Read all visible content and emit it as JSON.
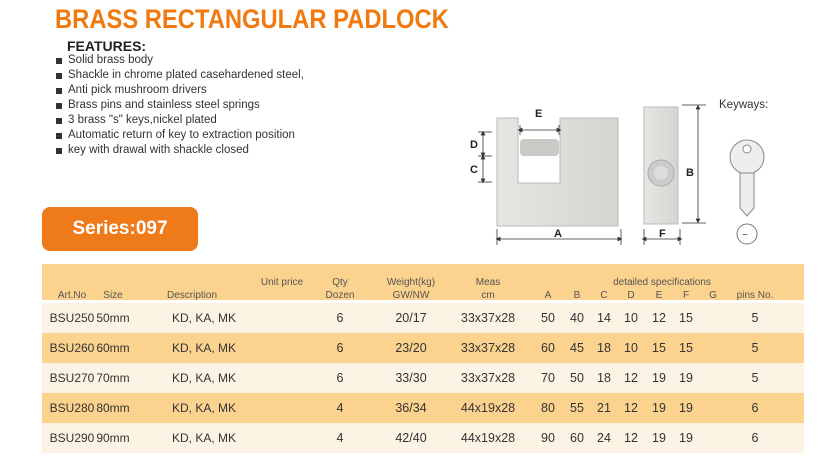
{
  "title": "BRASS RECTANGULAR PADLOCK",
  "features": {
    "heading": "FEATURES:",
    "items": [
      "Solid brass body",
      "Shackle in chrome plated casehardened steel,",
      "Anti pick mushroom drivers",
      "Brass pins and stainless steel springs",
      "3 brass \"s\" keys,nickel plated",
      "Automatic return of key to extraction position",
      "key with drawal with shackle closed"
    ]
  },
  "series": "Series:097",
  "diagram": {
    "labels": {
      "A": "A",
      "B": "B",
      "C": "C",
      "D": "D",
      "E": "E",
      "F": "F"
    },
    "keyways": "Keyways:"
  },
  "colors": {
    "accent": "#ef7a1a",
    "header_band": "#fcd38e",
    "row_light": "#fdf3e4",
    "row_dark": "#fcd38e"
  },
  "table": {
    "headers": {
      "art": "Art.No",
      "size": "Size",
      "desc": "Description",
      "price": "Unit price",
      "qty1": "Qty",
      "qty2": "Dozen",
      "wt1": "Weight(kg)",
      "wt2": "GW/NW",
      "meas1": "Meas",
      "meas2": "cm",
      "spec": "detailed specifications",
      "A": "A",
      "B": "B",
      "C": "C",
      "D": "D",
      "E": "E",
      "F": "F",
      "G": "G",
      "pins": "pins No."
    },
    "rows": [
      {
        "art": "BSU250",
        "size": "50mm",
        "desc": "KD, KA, MK",
        "qty": "6",
        "wt": "20/17",
        "meas": "33x37x28",
        "A": "50",
        "B": "40",
        "C": "14",
        "D": "10",
        "E": "12",
        "F": "15",
        "G": "",
        "pins": "5"
      },
      {
        "art": "BSU260",
        "size": "60mm",
        "desc": "KD, KA, MK",
        "qty": "6",
        "wt": "23/20",
        "meas": "33x37x28",
        "A": "60",
        "B": "45",
        "C": "18",
        "D": "10",
        "E": "15",
        "F": "15",
        "G": "",
        "pins": "5"
      },
      {
        "art": "BSU270",
        "size": "70mm",
        "desc": "KD, KA, MK",
        "qty": "6",
        "wt": "33/30",
        "meas": "33x37x28",
        "A": "70",
        "B": "50",
        "C": "18",
        "D": "12",
        "E": "19",
        "F": "19",
        "G": "",
        "pins": "5"
      },
      {
        "art": "BSU280",
        "size": "80mm",
        "desc": "KD, KA, MK",
        "qty": "4",
        "wt": "36/34",
        "meas": "44x19x28",
        "A": "80",
        "B": "55",
        "C": "21",
        "D": "12",
        "E": "19",
        "F": "19",
        "G": "",
        "pins": "6"
      },
      {
        "art": "BSU290",
        "size": "90mm",
        "desc": "KD, KA, MK",
        "qty": "4",
        "wt": "42/40",
        "meas": "44x19x28",
        "A": "90",
        "B": "60",
        "C": "24",
        "D": "12",
        "E": "19",
        "F": "19",
        "G": "",
        "pins": "6"
      }
    ]
  }
}
